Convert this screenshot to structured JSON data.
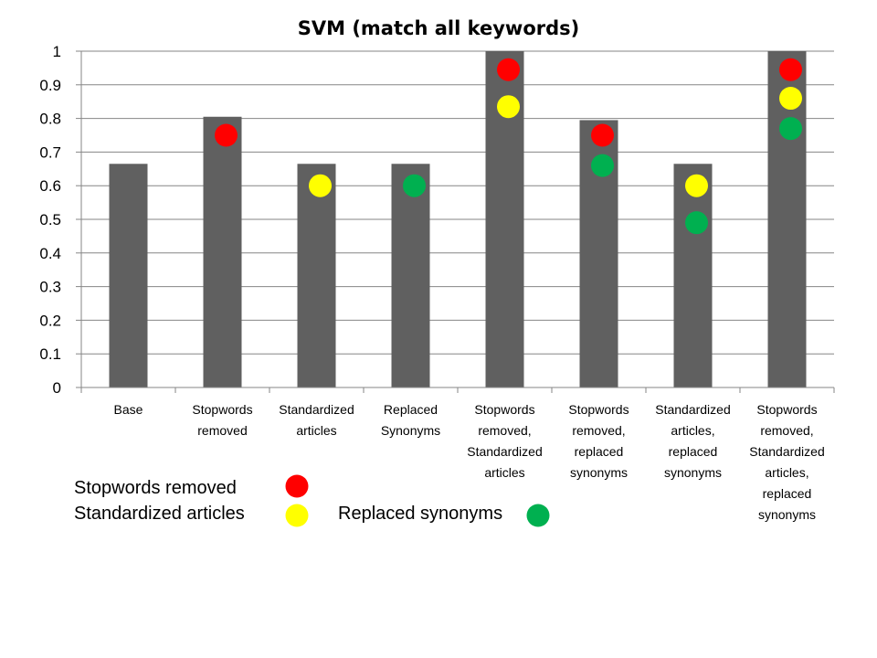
{
  "chart_data": {
    "type": "bar",
    "title": "SVM (match all keywords)",
    "xlabel": "",
    "ylabel": "",
    "ylim": [
      0,
      1
    ],
    "yticks": [
      "0",
      "0.1",
      "0.2",
      "0.3",
      "0.4",
      "0.5",
      "0.6",
      "0.7",
      "0.8",
      "0.9",
      "1"
    ],
    "grid": true,
    "bar_color": "#606060",
    "categories": [
      [
        "Base"
      ],
      [
        "Stopwords",
        "removed"
      ],
      [
        "Standardized",
        "articles"
      ],
      [
        "Replaced",
        "Synonyms"
      ],
      [
        "Stopwords",
        "removed,",
        "Standardized",
        "articles"
      ],
      [
        "Stopwords",
        "removed,",
        "replaced",
        "synonyms"
      ],
      [
        "Standardized",
        "articles,",
        "replaced",
        "synonyms"
      ],
      [
        "Stopwords",
        "removed,",
        "Standardized",
        "articles,",
        "replaced",
        "synonyms"
      ]
    ],
    "values": [
      0.665,
      0.805,
      0.665,
      0.665,
      1.0,
      0.795,
      0.665,
      1.0
    ],
    "markers": [
      {
        "name": "Stopwords removed",
        "color": "#ff0000",
        "values": [
          null,
          0.75,
          null,
          null,
          0.945,
          0.75,
          null,
          0.945
        ]
      },
      {
        "name": "Standardized articles",
        "color": "#ffff00",
        "values": [
          null,
          null,
          0.6,
          null,
          0.835,
          null,
          0.6,
          0.86
        ]
      },
      {
        "name": "Replaced synonyms",
        "color": "#00b050",
        "values": [
          null,
          null,
          null,
          0.6,
          null,
          0.66,
          0.49,
          0.77
        ]
      }
    ],
    "legend": {
      "placement": "bottom-left",
      "items": [
        {
          "label": "Stopwords removed",
          "color": "#ff0000"
        },
        {
          "label": "Standardized articles",
          "color": "#ffff00"
        },
        {
          "label": "Replaced synonyms",
          "color": "#00b050"
        }
      ]
    }
  }
}
